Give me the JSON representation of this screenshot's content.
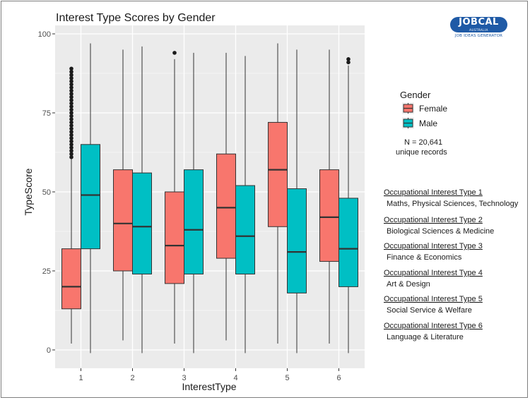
{
  "logo": {
    "main": "JOBCAL",
    "sub": "AUSTRALIA",
    "tagline": "JOB IDEAS GENERATOR"
  },
  "colors": {
    "female": "#F8766D",
    "male": "#00BFC4",
    "panel": "#EBEBEB",
    "grid": "#FFFFFF",
    "line": "#333333"
  },
  "chart_data": {
    "type": "boxplot",
    "title": "Interest Type Scores by Gender",
    "xlabel": "InterestType",
    "ylabel": "TypeScore",
    "categories": [
      "1",
      "2",
      "3",
      "4",
      "5",
      "6"
    ],
    "ylim": [
      -5,
      102
    ],
    "yticks": [
      0,
      25,
      50,
      75,
      100
    ],
    "grid": true,
    "legend": {
      "title": "Gender",
      "position": "right"
    },
    "note": [
      "N = 20,641",
      "unique records"
    ],
    "series": [
      {
        "name": "Female",
        "color": "#F8766D",
        "boxes": [
          {
            "min": 2,
            "q1": 13,
            "median": 20,
            "q3": 32,
            "max": 61,
            "outliers": [
              61,
              62,
              63,
              64,
              65,
              66,
              67,
              68,
              69,
              70,
              71,
              72,
              73,
              74,
              75,
              76,
              77,
              78,
              79,
              80,
              81,
              82,
              83,
              84,
              85,
              86,
              87,
              88,
              89
            ]
          },
          {
            "min": 3,
            "q1": 25,
            "median": 40,
            "q3": 57,
            "max": 95,
            "outliers": []
          },
          {
            "min": 2,
            "q1": 21,
            "median": 33,
            "q3": 50,
            "max": 92,
            "outliers": [
              94
            ]
          },
          {
            "min": 3,
            "q1": 29,
            "median": 45,
            "q3": 62,
            "max": 94,
            "outliers": []
          },
          {
            "min": 2,
            "q1": 39,
            "median": 57,
            "q3": 72,
            "max": 97,
            "outliers": []
          },
          {
            "min": 2,
            "q1": 28,
            "median": 42,
            "q3": 57,
            "max": 95,
            "outliers": []
          }
        ]
      },
      {
        "name": "Male",
        "color": "#00BFC4",
        "boxes": [
          {
            "min": -1,
            "q1": 32,
            "median": 49,
            "q3": 65,
            "max": 97,
            "outliers": []
          },
          {
            "min": -1,
            "q1": 24,
            "median": 39,
            "q3": 56,
            "max": 96,
            "outliers": []
          },
          {
            "min": -1,
            "q1": 24,
            "median": 38,
            "q3": 57,
            "max": 94,
            "outliers": []
          },
          {
            "min": -1,
            "q1": 24,
            "median": 36,
            "q3": 52,
            "max": 93,
            "outliers": []
          },
          {
            "min": -1,
            "q1": 18,
            "median": 31,
            "q3": 51,
            "max": 95,
            "outliers": []
          },
          {
            "min": -1,
            "q1": 20,
            "median": 32,
            "q3": 48,
            "max": 90,
            "outliers": [
              91,
              92
            ]
          }
        ]
      }
    ],
    "interest_types": [
      {
        "heading": "Occupational Interest Type 1",
        "description": "Maths, Physical Sciences, Technology"
      },
      {
        "heading": "Occupational Interest Type 2",
        "description": "Biological Sciences & Medicine"
      },
      {
        "heading": "Occupational Interest Type 3",
        "description": "Finance & Economics"
      },
      {
        "heading": "Occupational Interest Type 4",
        "description": "Art & Design"
      },
      {
        "heading": "Occupational Interest Type 5",
        "description": "Social Service & Welfare"
      },
      {
        "heading": "Occupational Interest Type 6",
        "description": "Language & Literature"
      }
    ]
  }
}
